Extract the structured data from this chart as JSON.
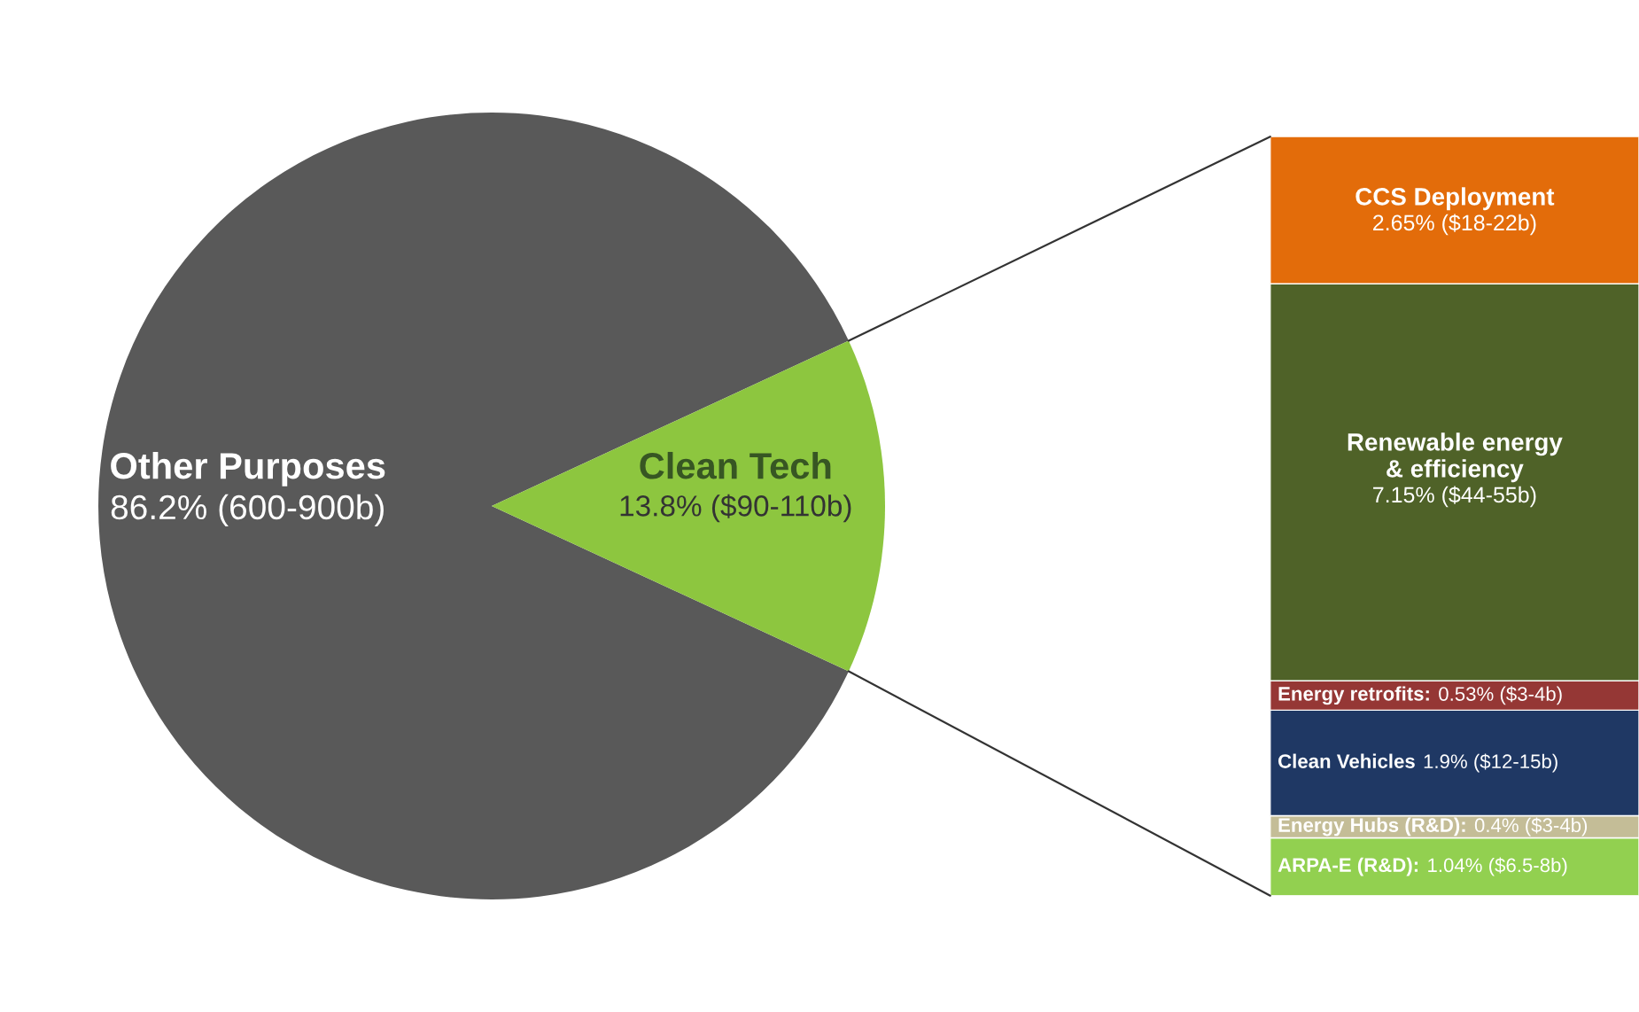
{
  "chart_data": [
    {
      "type": "pie",
      "categories": [
        "Other Purposes",
        "Clean Tech"
      ],
      "values": [
        86.2,
        13.8
      ],
      "colors": [
        "#595959",
        "#8dc63f"
      ],
      "value_labels": [
        "86.2% (600-900b)",
        "13.8% ($90-110b)"
      ]
    },
    {
      "type": "bar",
      "stacked": true,
      "categories": [
        null
      ],
      "series": [
        {
          "name": "ARPA-E (R&D):",
          "color": "#92d050",
          "values": [
            1.04
          ],
          "value_labels": [
            "1.04% ($6.5-8b)"
          ]
        },
        {
          "name": "Energy Hubs (R&D):",
          "color": "#c4bd97",
          "values": [
            0.4
          ],
          "value_labels": [
            "0.4% ($3-4b)"
          ]
        },
        {
          "name": "Clean Vehicles",
          "color": "#1f3864",
          "values": [
            1.9
          ],
          "value_labels": [
            "1.9% ($12-15b)"
          ]
        },
        {
          "name": "Energy retrofits:",
          "color": "#953735",
          "values": [
            0.53
          ],
          "value_labels": [
            "0.53% ($3-4b)"
          ]
        },
        {
          "name": "Renewable energy\n& efficiency",
          "color": "#4f6228",
          "values": [
            7.15
          ],
          "value_labels": [
            "7.15% ($44-55b)"
          ]
        },
        {
          "name": "CCS Deployment",
          "color": "#e36c0a",
          "values": [
            2.65
          ],
          "value_labels": [
            "2.65% ($18-22b)"
          ]
        }
      ]
    }
  ]
}
